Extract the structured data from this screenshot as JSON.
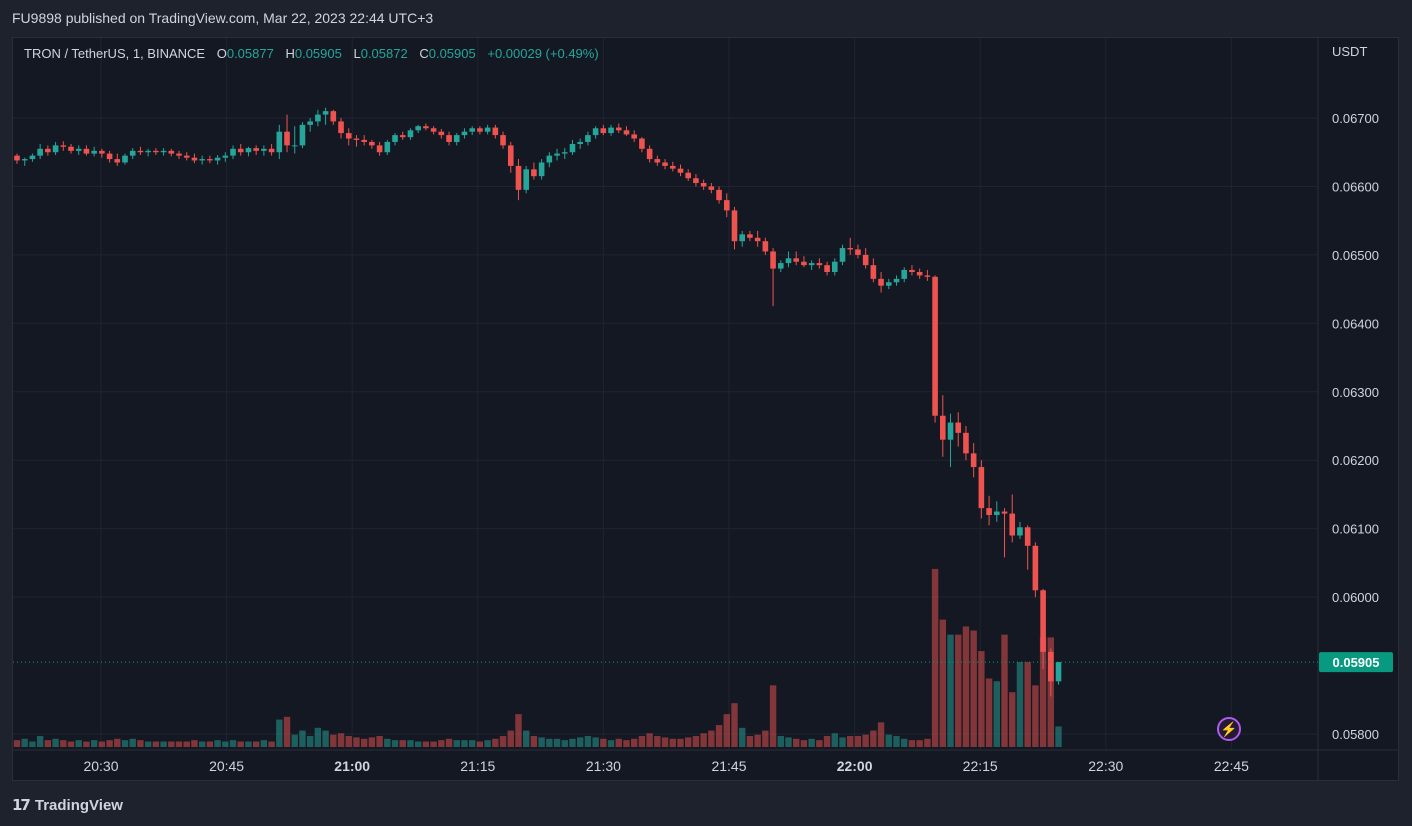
{
  "header": {
    "published": "FU9898 published on TradingView.com, Mar 22, 2023 22:44 UTC+3"
  },
  "legend": {
    "symbol": "TRON / TetherUS, 1, BINANCE",
    "open_label": "O",
    "open": "0.05877",
    "high_label": "H",
    "high": "0.05905",
    "low_label": "L",
    "low": "0.05872",
    "close_label": "C",
    "close": "0.05905",
    "change": "+0.00029 (+0.49%)"
  },
  "currency": "USDT",
  "footer": {
    "brand": "TradingView",
    "logo_icon": "tradingview-logo-icon"
  },
  "colors": {
    "up": "#26a69a",
    "down": "#ef5350",
    "background": "#141823",
    "last_price_tag": "#089981"
  },
  "chart_data": {
    "type": "candlestick",
    "y_ticks": [
      "0.06700",
      "0.06600",
      "0.06500",
      "0.06400",
      "0.06300",
      "0.06200",
      "0.06100",
      "0.06000",
      "0.05800"
    ],
    "x_ticks": [
      {
        "label": "20:30",
        "bold": false
      },
      {
        "label": "20:45",
        "bold": false
      },
      {
        "label": "21:00",
        "bold": true
      },
      {
        "label": "21:15",
        "bold": false
      },
      {
        "label": "21:30",
        "bold": false
      },
      {
        "label": "21:45",
        "bold": false
      },
      {
        "label": "22:00",
        "bold": true
      },
      {
        "label": "22:15",
        "bold": false
      },
      {
        "label": "22:30",
        "bold": false
      },
      {
        "label": "22:45",
        "bold": false
      }
    ],
    "last_price": "0.05905",
    "candles": [
      [
        0.06645,
        0.06648,
        0.06633,
        0.06638,
        5
      ],
      [
        0.06638,
        0.06642,
        0.0663,
        0.0664,
        6
      ],
      [
        0.0664,
        0.06648,
        0.06636,
        0.06645,
        4
      ],
      [
        0.06645,
        0.06662,
        0.0664,
        0.06655,
        8
      ],
      [
        0.06655,
        0.0666,
        0.06645,
        0.0665,
        5
      ],
      [
        0.0665,
        0.06665,
        0.06646,
        0.0666,
        6
      ],
      [
        0.0666,
        0.06666,
        0.06652,
        0.06658,
        5
      ],
      [
        0.06658,
        0.06662,
        0.06648,
        0.06652,
        4
      ],
      [
        0.06652,
        0.0666,
        0.06646,
        0.06655,
        5
      ],
      [
        0.06655,
        0.0666,
        0.06645,
        0.06648,
        4
      ],
      [
        0.06648,
        0.06658,
        0.06644,
        0.06652,
        5
      ],
      [
        0.06652,
        0.06655,
        0.06642,
        0.06648,
        4
      ],
      [
        0.06648,
        0.06652,
        0.06635,
        0.0664,
        5
      ],
      [
        0.0664,
        0.06648,
        0.0663,
        0.06635,
        6
      ],
      [
        0.06635,
        0.06648,
        0.06632,
        0.06645,
        5
      ],
      [
        0.06645,
        0.06656,
        0.0664,
        0.06652,
        6
      ],
      [
        0.06652,
        0.06658,
        0.06646,
        0.0665,
        5
      ],
      [
        0.0665,
        0.06655,
        0.06644,
        0.06652,
        4
      ],
      [
        0.06652,
        0.06656,
        0.06646,
        0.0665,
        4
      ],
      [
        0.0665,
        0.06656,
        0.06645,
        0.06652,
        4
      ],
      [
        0.06652,
        0.06655,
        0.06644,
        0.06648,
        4
      ],
      [
        0.06648,
        0.06652,
        0.0664,
        0.06645,
        4
      ],
      [
        0.06645,
        0.0665,
        0.06638,
        0.06642,
        4
      ],
      [
        0.06642,
        0.06648,
        0.06634,
        0.06638,
        5
      ],
      [
        0.06638,
        0.06645,
        0.06632,
        0.0664,
        4
      ],
      [
        0.0664,
        0.06645,
        0.06634,
        0.06638,
        4
      ],
      [
        0.06638,
        0.06646,
        0.06632,
        0.06642,
        5
      ],
      [
        0.06642,
        0.0665,
        0.06636,
        0.06645,
        4
      ],
      [
        0.06645,
        0.0666,
        0.0664,
        0.06655,
        5
      ],
      [
        0.06655,
        0.06662,
        0.06645,
        0.0665,
        4
      ],
      [
        0.0665,
        0.06658,
        0.06644,
        0.06656,
        4
      ],
      [
        0.06656,
        0.0666,
        0.06646,
        0.06652,
        4
      ],
      [
        0.06652,
        0.0666,
        0.06645,
        0.06655,
        5
      ],
      [
        0.06655,
        0.06662,
        0.06645,
        0.0665,
        4
      ],
      [
        0.0665,
        0.0669,
        0.0664,
        0.0668,
        20
      ],
      [
        0.0668,
        0.06705,
        0.0665,
        0.0666,
        22
      ],
      [
        0.0666,
        0.06688,
        0.06648,
        0.0666,
        9
      ],
      [
        0.0666,
        0.06694,
        0.06656,
        0.0669,
        12
      ],
      [
        0.0669,
        0.067,
        0.0668,
        0.06695,
        8
      ],
      [
        0.06695,
        0.06712,
        0.06688,
        0.06705,
        14
      ],
      [
        0.06705,
        0.06715,
        0.0669,
        0.0671,
        12
      ],
      [
        0.0671,
        0.06712,
        0.0669,
        0.06695,
        9
      ],
      [
        0.06695,
        0.067,
        0.0667,
        0.06678,
        10
      ],
      [
        0.06678,
        0.06685,
        0.0666,
        0.0667,
        8
      ],
      [
        0.0667,
        0.06675,
        0.06658,
        0.06668,
        7
      ],
      [
        0.06668,
        0.06675,
        0.0666,
        0.06665,
        6
      ],
      [
        0.06665,
        0.06668,
        0.06655,
        0.0666,
        7
      ],
      [
        0.0666,
        0.06665,
        0.06645,
        0.0665,
        8
      ],
      [
        0.0665,
        0.06668,
        0.06646,
        0.06665,
        6
      ],
      [
        0.06665,
        0.06678,
        0.0666,
        0.06675,
        5
      ],
      [
        0.06675,
        0.0668,
        0.06668,
        0.06672,
        5
      ],
      [
        0.06672,
        0.06685,
        0.06668,
        0.06682,
        5
      ],
      [
        0.06682,
        0.0669,
        0.06678,
        0.06688,
        4
      ],
      [
        0.06688,
        0.06692,
        0.06682,
        0.06685,
        4
      ],
      [
        0.06685,
        0.06688,
        0.06676,
        0.0668,
        4
      ],
      [
        0.0668,
        0.06684,
        0.0667,
        0.06675,
        5
      ],
      [
        0.06675,
        0.0668,
        0.0666,
        0.06665,
        6
      ],
      [
        0.06665,
        0.06678,
        0.0666,
        0.06675,
        5
      ],
      [
        0.06675,
        0.06685,
        0.0667,
        0.0668,
        5
      ],
      [
        0.0668,
        0.06688,
        0.06675,
        0.06685,
        5
      ],
      [
        0.06685,
        0.06688,
        0.06676,
        0.0668,
        4
      ],
      [
        0.0668,
        0.0669,
        0.06676,
        0.06686,
        5
      ],
      [
        0.06686,
        0.0669,
        0.0667,
        0.06675,
        6
      ],
      [
        0.06675,
        0.0668,
        0.06655,
        0.0666,
        8
      ],
      [
        0.0666,
        0.06665,
        0.0662,
        0.0663,
        12
      ],
      [
        0.0663,
        0.0664,
        0.0658,
        0.06595,
        24
      ],
      [
        0.06595,
        0.0663,
        0.0659,
        0.06625,
        12
      ],
      [
        0.06625,
        0.06635,
        0.0661,
        0.06615,
        8
      ],
      [
        0.06615,
        0.0664,
        0.0661,
        0.06635,
        7
      ],
      [
        0.06635,
        0.0665,
        0.06628,
        0.06645,
        6
      ],
      [
        0.06645,
        0.06655,
        0.06638,
        0.06648,
        6
      ],
      [
        0.06648,
        0.06656,
        0.0664,
        0.0665,
        5
      ],
      [
        0.0665,
        0.06668,
        0.06646,
        0.06662,
        6
      ],
      [
        0.06662,
        0.0667,
        0.06655,
        0.06665,
        7
      ],
      [
        0.06665,
        0.0668,
        0.0666,
        0.06675,
        8
      ],
      [
        0.06675,
        0.06688,
        0.0667,
        0.06685,
        7
      ],
      [
        0.06685,
        0.0669,
        0.06675,
        0.06678,
        6
      ],
      [
        0.06678,
        0.0669,
        0.06674,
        0.06686,
        5
      ],
      [
        0.06686,
        0.06692,
        0.06678,
        0.06682,
        6
      ],
      [
        0.06682,
        0.06688,
        0.06674,
        0.06676,
        5
      ],
      [
        0.06676,
        0.06682,
        0.06665,
        0.0667,
        6
      ],
      [
        0.0667,
        0.06672,
        0.0665,
        0.06655,
        8
      ],
      [
        0.06655,
        0.0666,
        0.06635,
        0.0664,
        10
      ],
      [
        0.0664,
        0.06645,
        0.0663,
        0.06635,
        8
      ],
      [
        0.06635,
        0.0664,
        0.06625,
        0.0663,
        7
      ],
      [
        0.0663,
        0.06636,
        0.06622,
        0.06626,
        6
      ],
      [
        0.06626,
        0.06632,
        0.06615,
        0.0662,
        6
      ],
      [
        0.0662,
        0.06625,
        0.06608,
        0.06612,
        7
      ],
      [
        0.06612,
        0.06618,
        0.066,
        0.06605,
        8
      ],
      [
        0.06605,
        0.0661,
        0.06595,
        0.066,
        10
      ],
      [
        0.066,
        0.06605,
        0.0659,
        0.06595,
        12
      ],
      [
        0.06595,
        0.066,
        0.06575,
        0.0658,
        16
      ],
      [
        0.0658,
        0.0659,
        0.06555,
        0.06565,
        24
      ],
      [
        0.06565,
        0.0657,
        0.06508,
        0.0652,
        32
      ],
      [
        0.0652,
        0.06535,
        0.06512,
        0.0653,
        14
      ],
      [
        0.0653,
        0.06535,
        0.0652,
        0.06525,
        8
      ],
      [
        0.06525,
        0.06535,
        0.06512,
        0.0652,
        9
      ],
      [
        0.0652,
        0.06525,
        0.065,
        0.06505,
        12
      ],
      [
        0.06505,
        0.0651,
        0.06425,
        0.0648,
        45
      ],
      [
        0.0648,
        0.06492,
        0.06475,
        0.06488,
        8
      ],
      [
        0.06488,
        0.06505,
        0.06482,
        0.06495,
        7
      ],
      [
        0.06495,
        0.06505,
        0.06485,
        0.0649,
        6
      ],
      [
        0.0649,
        0.06498,
        0.06482,
        0.06485,
        5
      ],
      [
        0.06485,
        0.06492,
        0.06478,
        0.06488,
        6
      ],
      [
        0.06488,
        0.06495,
        0.0648,
        0.06485,
        5
      ],
      [
        0.06485,
        0.0649,
        0.0647,
        0.06475,
        8
      ],
      [
        0.06475,
        0.06495,
        0.0647,
        0.0649,
        10
      ],
      [
        0.0649,
        0.06515,
        0.06485,
        0.0651,
        7
      ],
      [
        0.0651,
        0.06525,
        0.065,
        0.06508,
        8
      ],
      [
        0.06508,
        0.06515,
        0.06495,
        0.065,
        8
      ],
      [
        0.065,
        0.0651,
        0.0648,
        0.06485,
        9
      ],
      [
        0.06485,
        0.06495,
        0.0646,
        0.06465,
        12
      ],
      [
        0.06465,
        0.06475,
        0.06445,
        0.06455,
        18
      ],
      [
        0.06455,
        0.06465,
        0.0645,
        0.0646,
        9
      ],
      [
        0.0646,
        0.0647,
        0.06455,
        0.06465,
        8
      ],
      [
        0.06465,
        0.06482,
        0.0646,
        0.06478,
        6
      ],
      [
        0.06478,
        0.06485,
        0.0647,
        0.06475,
        5
      ],
      [
        0.06475,
        0.0648,
        0.06465,
        0.0647,
        5
      ],
      [
        0.0647,
        0.06478,
        0.06462,
        0.06468,
        6
      ],
      [
        0.06468,
        0.0647,
        0.06255,
        0.06265,
        130
      ],
      [
        0.06265,
        0.06295,
        0.06205,
        0.0623,
        93
      ],
      [
        0.0623,
        0.06268,
        0.0619,
        0.06255,
        82
      ],
      [
        0.06255,
        0.0627,
        0.0622,
        0.0624,
        82
      ],
      [
        0.0624,
        0.0625,
        0.062,
        0.0621,
        88
      ],
      [
        0.0621,
        0.06225,
        0.06175,
        0.0619,
        85
      ],
      [
        0.0619,
        0.062,
        0.06115,
        0.0613,
        70
      ],
      [
        0.0613,
        0.06148,
        0.06105,
        0.0612,
        50
      ],
      [
        0.0612,
        0.0614,
        0.0611,
        0.06125,
        48
      ],
      [
        0.06125,
        0.0613,
        0.06058,
        0.06122,
        82
      ],
      [
        0.06122,
        0.0615,
        0.0608,
        0.0609,
        40
      ],
      [
        0.0609,
        0.0611,
        0.06085,
        0.06102,
        62
      ],
      [
        0.06102,
        0.06105,
        0.0604,
        0.06075,
        62
      ],
      [
        0.06075,
        0.0608,
        0.06,
        0.0601,
        45
      ],
      [
        0.0601,
        0.06012,
        0.05895,
        0.0592,
        80
      ],
      [
        0.0592,
        0.05925,
        0.05855,
        0.05877,
        80
      ],
      [
        0.05877,
        0.05905,
        0.05872,
        0.05905,
        15
      ]
    ]
  }
}
